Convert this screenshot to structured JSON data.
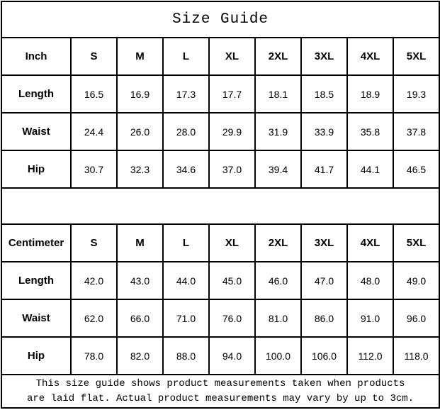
{
  "page": {
    "title": "Size Guide"
  },
  "colors": {
    "background": "#ffffff",
    "text": "#000000",
    "border": "#000000"
  },
  "tables": [
    {
      "unit_label": "Inch",
      "size_headers": [
        "S",
        "M",
        "L",
        "XL",
        "2XL",
        "3XL",
        "4XL",
        "5XL"
      ],
      "rows": [
        {
          "label": "Length",
          "values": [
            "16.5",
            "16.9",
            "17.3",
            "17.7",
            "18.1",
            "18.5",
            "18.9",
            "19.3"
          ]
        },
        {
          "label": "Waist",
          "values": [
            "24.4",
            "26.0",
            "28.0",
            "29.9",
            "31.9",
            "33.9",
            "35.8",
            "37.8"
          ]
        },
        {
          "label": "Hip",
          "values": [
            "30.7",
            "32.3",
            "34.6",
            "37.0",
            "39.4",
            "41.7",
            "44.1",
            "46.5"
          ]
        }
      ]
    },
    {
      "unit_label": "Centimeter",
      "size_headers": [
        "S",
        "M",
        "L",
        "XL",
        "2XL",
        "3XL",
        "4XL",
        "5XL"
      ],
      "rows": [
        {
          "label": "Length",
          "values": [
            "42.0",
            "43.0",
            "44.0",
            "45.0",
            "46.0",
            "47.0",
            "48.0",
            "49.0"
          ]
        },
        {
          "label": "Waist",
          "values": [
            "62.0",
            "66.0",
            "71.0",
            "76.0",
            "81.0",
            "86.0",
            "91.0",
            "96.0"
          ]
        },
        {
          "label": "Hip",
          "values": [
            "78.0",
            "82.0",
            "88.0",
            "94.0",
            "100.0",
            "106.0",
            "112.0",
            "118.0"
          ]
        }
      ]
    }
  ],
  "footer": {
    "line1": "This size guide shows product measurements taken when products",
    "line2": "are laid flat. Actual product measurements may vary by up to 3cm."
  },
  "chart_data": [
    {
      "type": "table",
      "title": "Size Guide",
      "columns": [
        "Inch",
        "S",
        "M",
        "L",
        "XL",
        "2XL",
        "3XL",
        "4XL",
        "5XL"
      ],
      "rows": [
        [
          "Length",
          16.5,
          16.9,
          17.3,
          17.7,
          18.1,
          18.5,
          18.9,
          19.3
        ],
        [
          "Waist",
          24.4,
          26.0,
          28.0,
          29.9,
          31.9,
          33.9,
          35.8,
          37.8
        ],
        [
          "Hip",
          30.7,
          32.3,
          34.6,
          37.0,
          39.4,
          41.7,
          44.1,
          46.5
        ]
      ]
    },
    {
      "type": "table",
      "title": "Size Guide",
      "columns": [
        "Centimeter",
        "S",
        "M",
        "L",
        "XL",
        "2XL",
        "3XL",
        "4XL",
        "5XL"
      ],
      "rows": [
        [
          "Length",
          42.0,
          43.0,
          44.0,
          45.0,
          46.0,
          47.0,
          48.0,
          49.0
        ],
        [
          "Waist",
          62.0,
          66.0,
          71.0,
          76.0,
          81.0,
          86.0,
          91.0,
          96.0
        ],
        [
          "Hip",
          78.0,
          82.0,
          88.0,
          94.0,
          100.0,
          106.0,
          112.0,
          118.0
        ]
      ],
      "note": "This size guide shows product measurements taken when products are laid flat. Actual product measurements may vary by up to 3cm."
    }
  ]
}
